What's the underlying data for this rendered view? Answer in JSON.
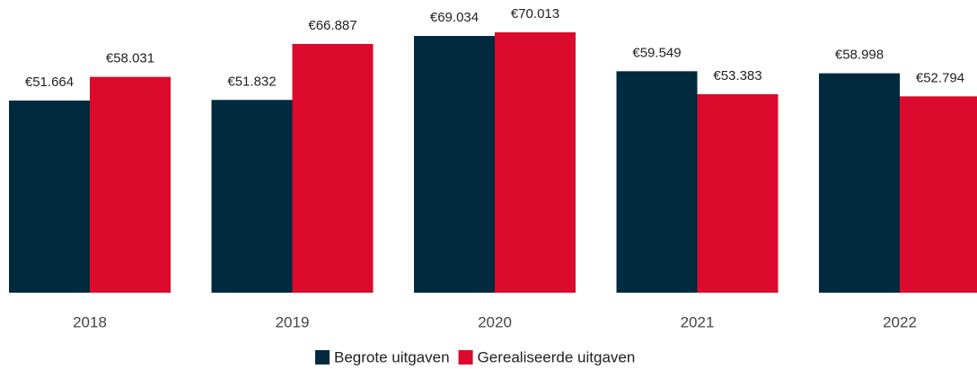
{
  "chart_data": {
    "type": "bar",
    "categories": [
      "2018",
      "2019",
      "2020",
      "2021",
      "2022"
    ],
    "series": [
      {
        "name": "Begrote uitgaven",
        "color": "#012a3f",
        "values": [
          51664,
          51832,
          69034,
          59549,
          58998
        ],
        "value_labels": [
          "€51.664",
          "€51.832",
          "€69.034",
          "€59.549",
          "€58.998"
        ]
      },
      {
        "name": "Gerealiseerde uitgaven",
        "color": "#dc0a2c",
        "values": [
          58031,
          66887,
          70013,
          53383,
          52794
        ],
        "value_labels": [
          "€58.031",
          "€66.887",
          "€70.013",
          "€53.383",
          "€52.794"
        ]
      }
    ]
  }
}
